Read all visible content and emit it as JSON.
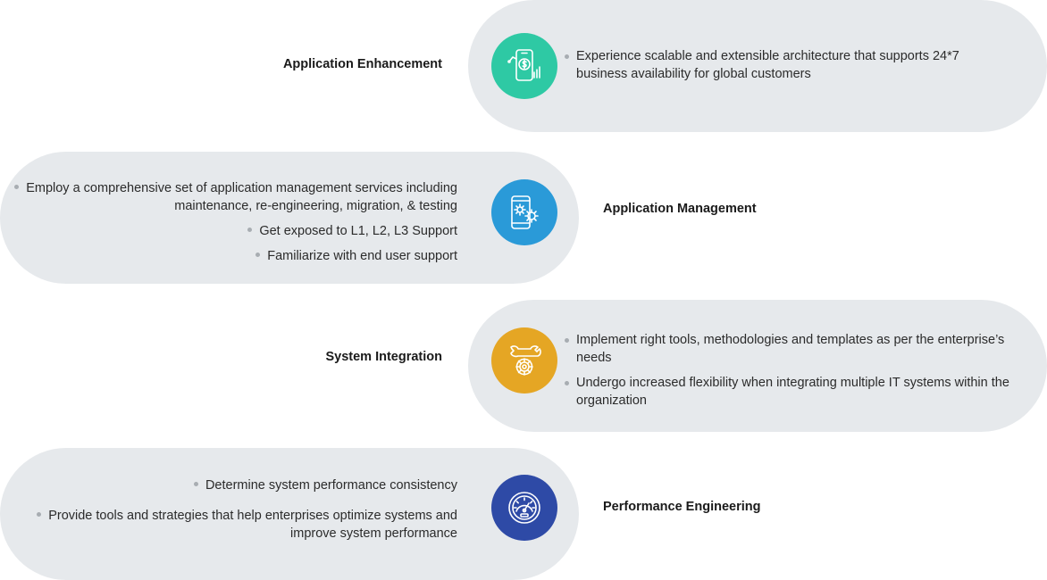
{
  "colors": {
    "pill": "#e6e9ec",
    "teal": "#2ec9a4",
    "blue": "#2a9ad8",
    "orange": "#e5a624",
    "navy": "#2e4aa6",
    "bullet": "#a8adb2"
  },
  "rows": [
    {
      "title": "Application Enhancement",
      "icon": "mobile-dollar-chart-icon",
      "bullets": [
        "Experience scalable and extensible architecture that supports 24*7 business availability for global customers"
      ]
    },
    {
      "title": "Application Management",
      "icon": "mobile-gears-icon",
      "bullets": [
        "Employ a comprehensive set of application management services including maintenance, re-engineering, migration, & testing",
        "Get exposed to L1, L2, L3 Support",
        "Familiarize with end user support"
      ]
    },
    {
      "title": "System Integration",
      "icon": "wrench-gear-icon",
      "bullets": [
        "Implement right tools, methodologies and templates as per the enterprise’s needs",
        "Undergo increased flexibility when integrating multiple IT systems within the organization"
      ]
    },
    {
      "title": "Performance Engineering",
      "icon": "speedometer-icon",
      "bullets": [
        "Determine system performance consistency",
        "Provide tools and strategies that help enterprises optimize systems and improve system performance"
      ]
    }
  ]
}
